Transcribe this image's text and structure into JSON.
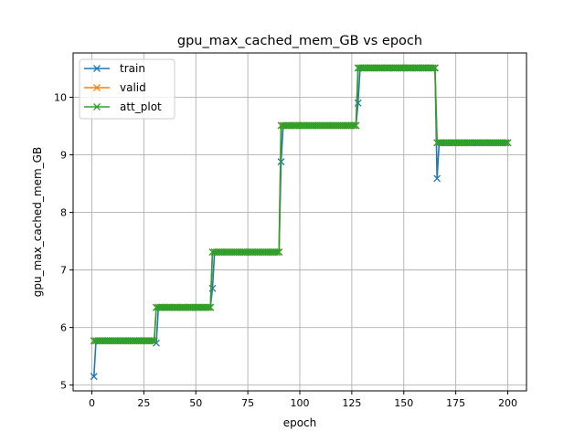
{
  "chart_data": {
    "type": "line",
    "title": "gpu_max_cached_mem_GB vs epoch",
    "xlabel": "epoch",
    "ylabel": "gpu_max_cached_mem_GB",
    "xlim": [
      -9,
      209
    ],
    "ylim": [
      4.9,
      10.77
    ],
    "xticks": [
      0,
      25,
      50,
      75,
      100,
      125,
      150,
      175,
      200
    ],
    "yticks": [
      5,
      6,
      7,
      8,
      9,
      10
    ],
    "grid": true,
    "legend_position": "top-left",
    "marker": "x",
    "series": [
      {
        "name": "train",
        "color": "#1f77b4",
        "x_range": [
          1,
          200
        ],
        "segments": [
          {
            "from": 1,
            "to": 1,
            "value": 5.15
          },
          {
            "from": 2,
            "to": 30,
            "value": 5.77
          },
          {
            "from": 31,
            "to": 31,
            "value": 5.73
          },
          {
            "from": 32,
            "to": 57,
            "value": 6.35
          },
          {
            "from": 58,
            "to": 58,
            "value": 6.68
          },
          {
            "from": 59,
            "to": 90,
            "value": 7.31
          },
          {
            "from": 91,
            "to": 91,
            "value": 8.88
          },
          {
            "from": 92,
            "to": 127,
            "value": 9.51
          },
          {
            "from": 128,
            "to": 128,
            "value": 9.9
          },
          {
            "from": 129,
            "to": 165,
            "value": 10.51
          },
          {
            "from": 166,
            "to": 166,
            "value": 8.59
          },
          {
            "from": 167,
            "to": 200,
            "value": 9.21
          }
        ]
      },
      {
        "name": "valid",
        "color": "#ff7f0e",
        "x_range": [
          1,
          200
        ],
        "segments": [
          {
            "from": 1,
            "to": 30,
            "value": 5.77
          },
          {
            "from": 31,
            "to": 57,
            "value": 6.35
          },
          {
            "from": 58,
            "to": 90,
            "value": 7.31
          },
          {
            "from": 91,
            "to": 127,
            "value": 9.51
          },
          {
            "from": 128,
            "to": 165,
            "value": 10.51
          },
          {
            "from": 166,
            "to": 200,
            "value": 9.21
          }
        ]
      },
      {
        "name": "att_plot",
        "color": "#2ca02c",
        "x_range": [
          1,
          200
        ],
        "segments": [
          {
            "from": 1,
            "to": 30,
            "value": 5.77
          },
          {
            "from": 31,
            "to": 57,
            "value": 6.35
          },
          {
            "from": 58,
            "to": 90,
            "value": 7.31
          },
          {
            "from": 91,
            "to": 127,
            "value": 9.51
          },
          {
            "from": 128,
            "to": 165,
            "value": 10.51
          },
          {
            "from": 166,
            "to": 200,
            "value": 9.21
          }
        ]
      }
    ]
  }
}
